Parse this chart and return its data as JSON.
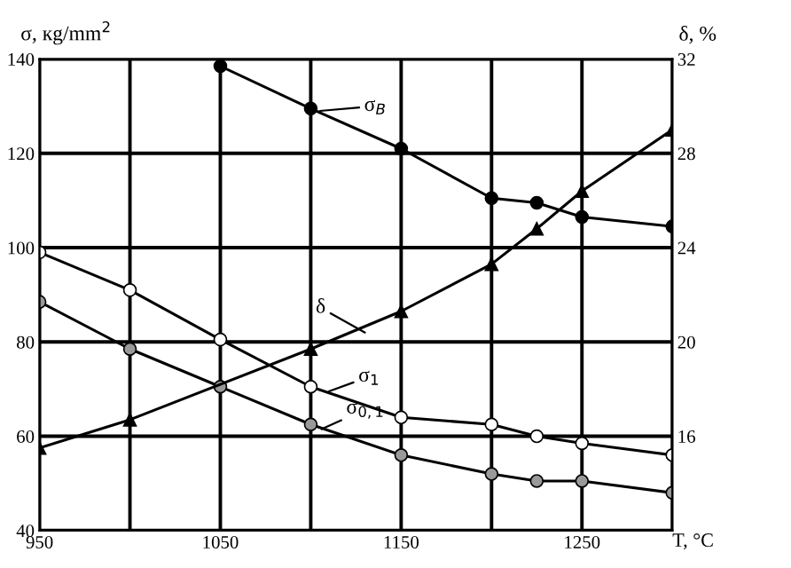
{
  "chart_data": {
    "type": "line",
    "xlabel": "T, °C",
    "ylabel": "σ, кg/mm$^{2}$",
    "y2label": "δ, %",
    "x": [
      950,
      1000,
      1050,
      1100,
      1150,
      1200,
      1225,
      1250,
      1300
    ],
    "series": [
      {
        "color": "#000000",
        "marker": "circle",
        "x": [
          1050,
          1100,
          1150,
          1200,
          1225,
          1250,
          1300
        ],
        "values": [
          138.5,
          129.5,
          121,
          110.5,
          109.5,
          106.5,
          104.5
        ]
      },
      {
        "color": "#000000",
        "marker": "triangle",
        "axis": "y2",
        "x": [
          950,
          1000,
          1100,
          1150,
          1200,
          1225,
          1250,
          1300
        ],
        "values": [
          15.5,
          16.7,
          19.7,
          21.3,
          23.3,
          24.8,
          26.4,
          29
        ]
      },
      {
        "color": "#ffffff",
        "marker": "circle",
        "values": [
          99,
          91,
          80.5,
          70.5,
          64,
          62.5,
          60,
          58.5,
          56
        ]
      },
      {
        "color": "#999999",
        "marker": "circle",
        "values": [
          88.5,
          78.5,
          70.5,
          62.5,
          56,
          52,
          50.5,
          50.5,
          48
        ]
      }
    ],
    "annotations": [
      {
        "text": "σ$_{B}$",
        "x": 1105,
        "y": 129
      },
      {
        "text": "δ",
        "x": 1130,
        "y": 82
      },
      {
        "text": "σ$_{1}$",
        "x": 1110,
        "y": 69.5
      },
      {
        "text": "σ$_{0,1}$",
        "x": 1106,
        "y": 61.5
      }
    ],
    "xlim": [
      950,
      1300
    ],
    "xticks": [
      950,
      {
        "value": 1000,
        "label": null
      },
      1050,
      {
        "value": 1100,
        "label": null
      },
      1150,
      {
        "value": 1200,
        "label": null
      },
      1250,
      {
        "value": 1300,
        "label": null
      }
    ],
    "ylim": [
      40,
      140
    ],
    "yticks": [
      40,
      60,
      80,
      100,
      120,
      140
    ],
    "y2lim": [
      12,
      32
    ],
    "y2ticks": [
      16,
      20,
      24,
      28,
      32
    ],
    "grid": true,
    "line_style": "solid"
  }
}
